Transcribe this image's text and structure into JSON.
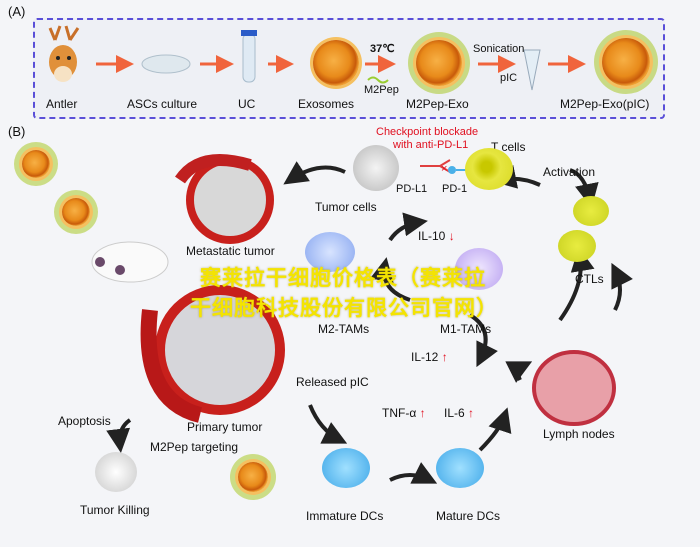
{
  "panel_a": {
    "label": "(A)",
    "steps": [
      "Antler",
      "ASCs culture",
      "UC",
      "Exosomes",
      "M2Pep-Exo",
      "M2Pep-Exo(pIC)"
    ],
    "temp": "37℃",
    "m2pep": "M2Pep",
    "sonication": "Sonication",
    "pic": "pIC"
  },
  "panel_b": {
    "label": "(B)",
    "checkpoint": "Checkpoint blockade",
    "checkpoint2": "with anti-PD-L1",
    "t_cells": "T cells",
    "pd_l1": "PD-L1",
    "pd_1": "PD-1",
    "tumor_cells": "Tumor cells",
    "activation": "Activation",
    "metastatic": "Metastatic tumor",
    "il10": "IL-10",
    "m2tams": "M2-TAMs",
    "m1tams": "M1-TAMs",
    "ctls": "CTLs",
    "il12": "IL-12",
    "released": "Released pIC",
    "tnf": "TNF-α",
    "il6": "IL-6",
    "lymph": "Lymph nodes",
    "apoptosis": "Apoptosis",
    "primary": "Primary tumor",
    "targeting": "M2Pep targeting",
    "killing": "Tumor Killing",
    "immature": "Immature DCs",
    "mature": "Mature DCs",
    "up_arrow": "↑",
    "down_arrow": "↓",
    "x_mark": "×"
  },
  "watermark": {
    "line1": "赛莱拉干细胞价格表（赛莱拉",
    "line2": "干细胞科技股份有限公司官网）"
  },
  "colors": {
    "dashed_border": "#5a4fd8",
    "arrow": "#f0643c",
    "red_text": "#e01020",
    "watermark": "#f4e400"
  }
}
